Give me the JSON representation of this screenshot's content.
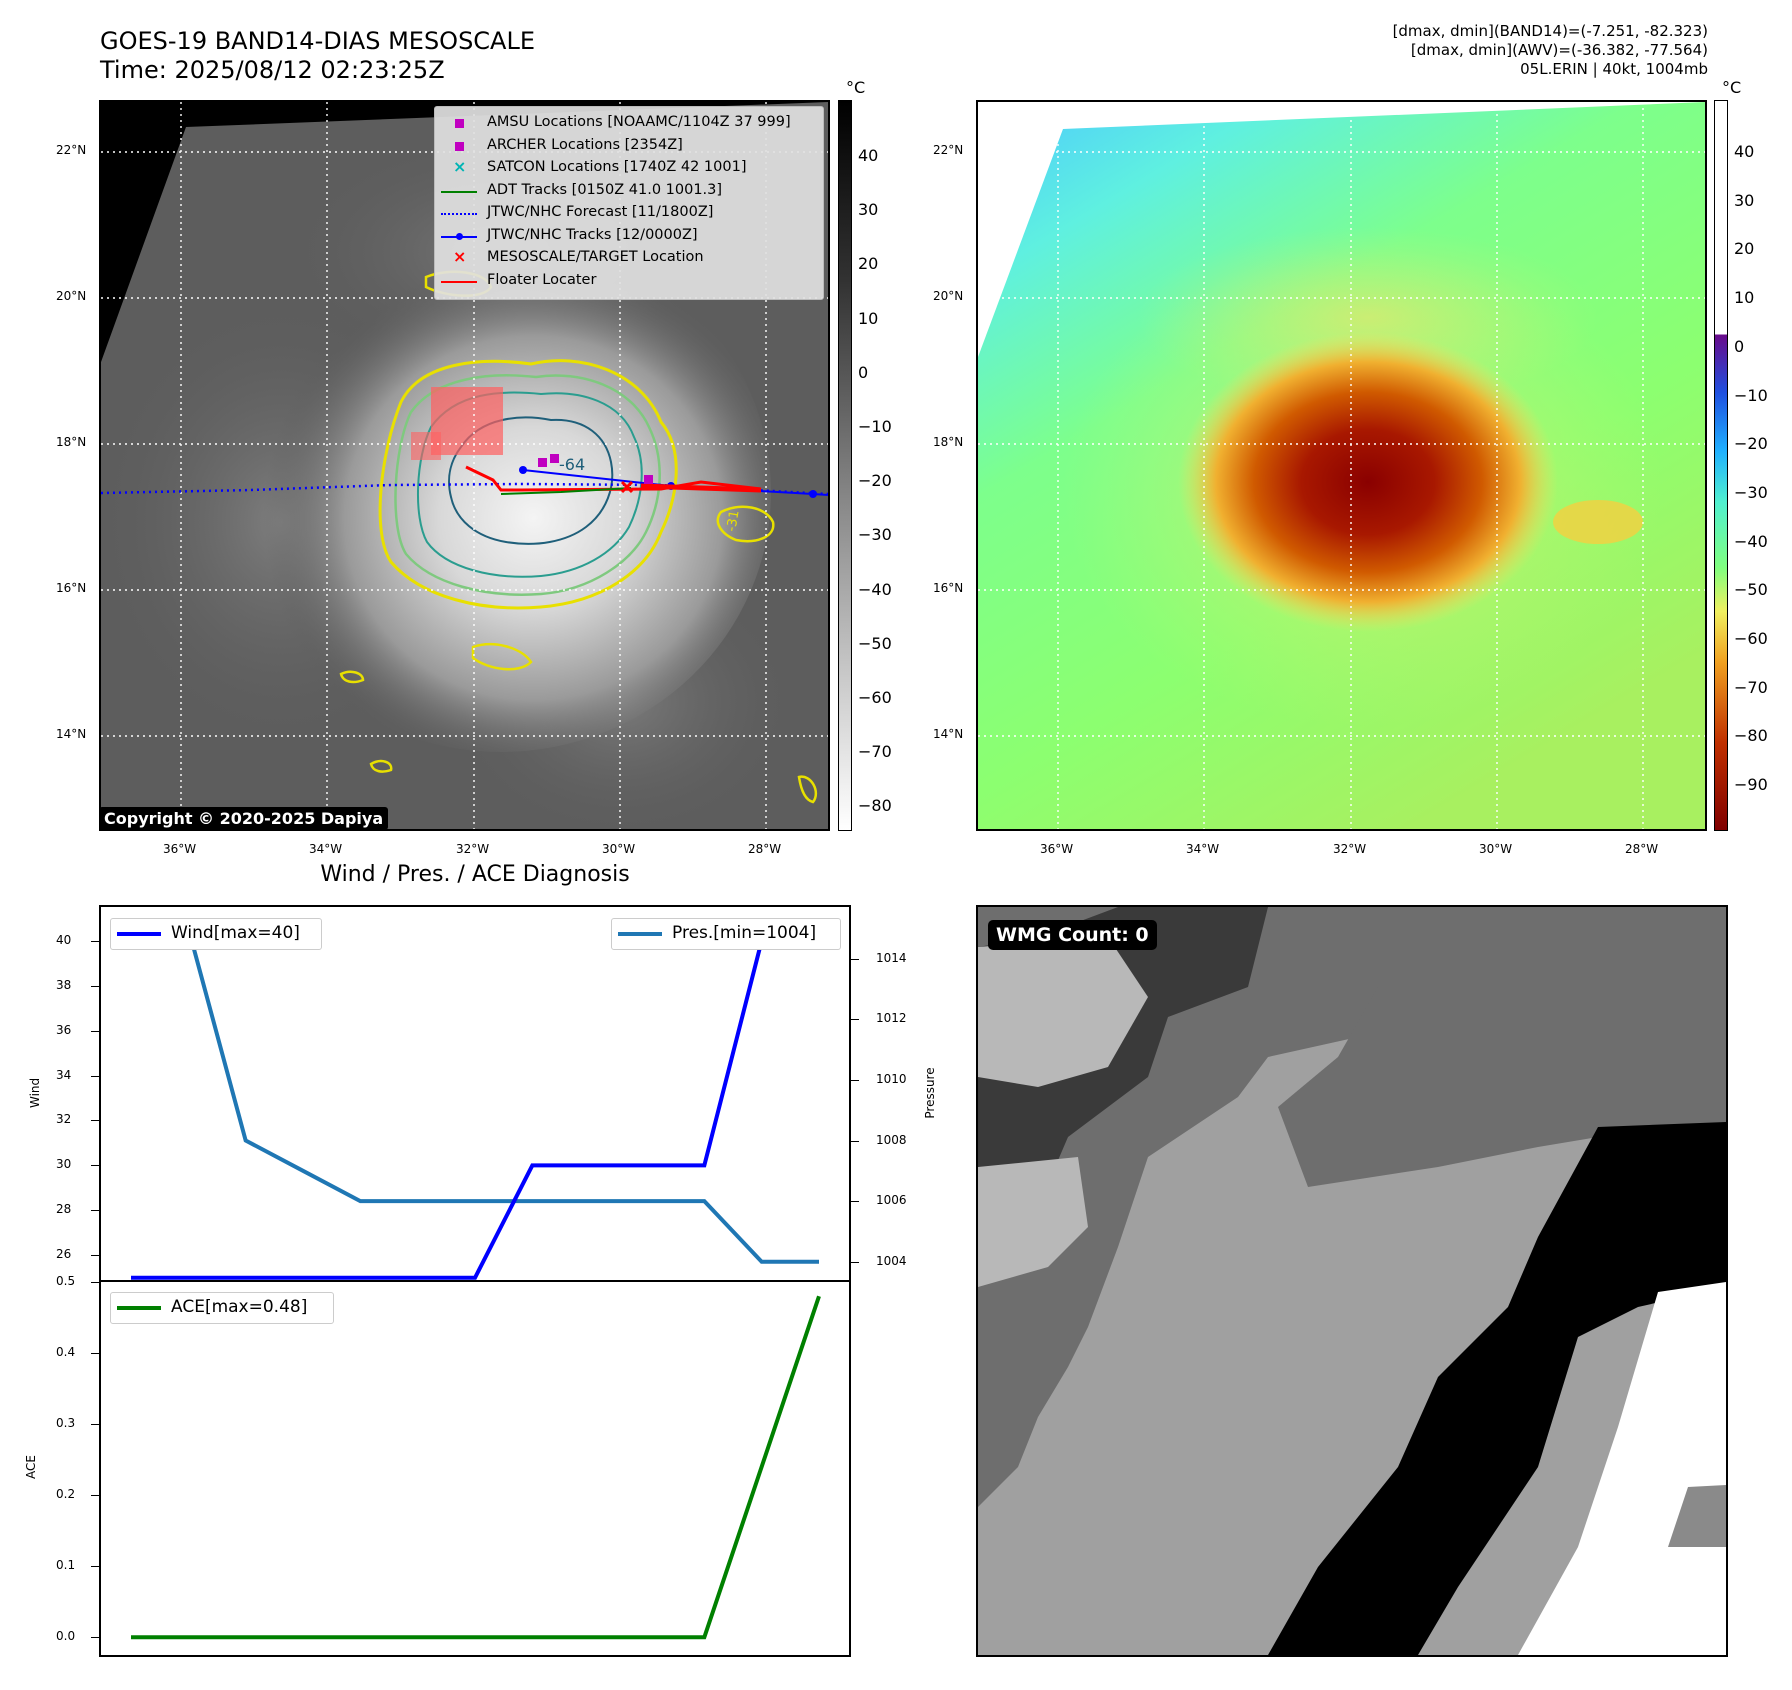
{
  "header": {
    "title_line1": "GOES-19 BAND14-DIAS MESOSCALE",
    "title_line2": "Time: 2025/08/12 02:23:25Z",
    "info_line1": "[dmax, dmin](BAND14)=(-7.251, -82.323)",
    "info_line2": "[dmax, dmin](AWV)=(-36.382, -77.564)",
    "info_line3": "05L.ERIN | 40kt, 1004mb"
  },
  "map": {
    "lat_ticks": [
      "22°N",
      "20°N",
      "18°N",
      "16°N",
      "14°N"
    ],
    "lon_ticks": [
      "36°W",
      "34°W",
      "32°W",
      "30°W",
      "28°W"
    ],
    "contour_label_1": "-64",
    "contour_label_2": "-31",
    "copyright": "Copyright © 2020-2025 Dapiya",
    "colors": {
      "amsu": "#c000c0",
      "archer": "#c000c0",
      "satcon": "#00b4b4",
      "adt": "#008000",
      "jtwc_forecast": "#0000ff",
      "jtwc_tracks": "#0000ff",
      "mesoscale": "#ff0000",
      "floater": "#ff0000"
    },
    "legend": [
      {
        "label": "AMSU Locations [NOAAMC/1104Z 37 999]",
        "symbol": "square-icon"
      },
      {
        "label": "ARCHER Locations [2354Z]",
        "symbol": "square-icon"
      },
      {
        "label": "SATCON Locations [1740Z 42 1001]",
        "symbol": "x-icon"
      },
      {
        "label": "ADT Tracks [0150Z 41.0 1001.3]",
        "symbol": "line-icon"
      },
      {
        "label": "JTWC/NHC Forecast [11/1800Z]",
        "symbol": "dotted-line-icon"
      },
      {
        "label": "JTWC/NHC Tracks [12/0000Z]",
        "symbol": "line-dot-icon"
      },
      {
        "label": "MESOSCALE/TARGET Location",
        "symbol": "x-icon"
      },
      {
        "label": "Floater Locater",
        "symbol": "line-icon"
      }
    ]
  },
  "colorbar_gray": {
    "unit": "°C",
    "ticks": [
      "40",
      "30",
      "20",
      "10",
      "0",
      "−10",
      "−20",
      "−30",
      "−40",
      "−50",
      "−60",
      "−70",
      "−80"
    ]
  },
  "colorbar_color": {
    "unit": "°C",
    "ticks": [
      "40",
      "30",
      "20",
      "10",
      "0",
      "−10",
      "−20",
      "−30",
      "−40",
      "−50",
      "−60",
      "−70",
      "−80",
      "−90"
    ]
  },
  "diagnosis": {
    "title": "Wind / Pres. / ACE Diagnosis",
    "wind_axis_label": "Wind",
    "pressure_axis_label": "Pressure",
    "ace_axis_label": "ACE",
    "wind_legend": "Wind[max=40]",
    "pres_legend": "Pres.[min=1004]",
    "ace_legend": "ACE[max=0.48]",
    "colors": {
      "wind": "#0000ff",
      "pressure": "#1f77b4",
      "ace": "#008000"
    }
  },
  "chart_data": [
    {
      "type": "line",
      "title": "Wind / Pres. / ACE Diagnosis",
      "x": [
        0,
        1,
        2,
        3,
        4,
        5,
        6,
        7,
        8,
        9,
        10,
        11,
        12
      ],
      "series": [
        {
          "name": "Wind[max=40]",
          "axis": "left",
          "values": [
            25,
            25,
            25,
            25,
            25,
            25,
            25,
            30,
            30,
            30,
            30,
            40,
            40
          ]
        },
        {
          "name": "Pres.[min=1004]",
          "axis": "right",
          "values": [
            1015,
            1015,
            1008,
            1007,
            1006,
            1006,
            1006,
            1006,
            1006,
            1006,
            1006,
            1004,
            1004
          ]
        }
      ],
      "wind_ticks": [
        26,
        28,
        30,
        32,
        34,
        36,
        38,
        40
      ],
      "pressure_ticks": [
        1004,
        1006,
        1008,
        1010,
        1012,
        1014
      ],
      "ylabel": "Wind",
      "y2label": "Pressure",
      "ylim": [
        24.9,
        41.5
      ],
      "y2lim": [
        1003.4,
        1015.7
      ]
    },
    {
      "type": "line",
      "series": [
        {
          "name": "ACE[max=0.48]",
          "values": [
            0,
            0,
            0,
            0,
            0,
            0,
            0,
            0,
            0,
            0,
            0,
            0.24,
            0.48
          ]
        }
      ],
      "x": [
        0,
        1,
        2,
        3,
        4,
        5,
        6,
        7,
        8,
        9,
        10,
        11,
        12
      ],
      "ace_ticks": [
        "0.0",
        "0.1",
        "0.2",
        "0.3",
        "0.4",
        "0.5"
      ],
      "ylabel": "ACE",
      "ylim": [
        -0.025,
        0.5
      ]
    }
  ],
  "wmg": {
    "badge": "WMG Count: 0"
  }
}
